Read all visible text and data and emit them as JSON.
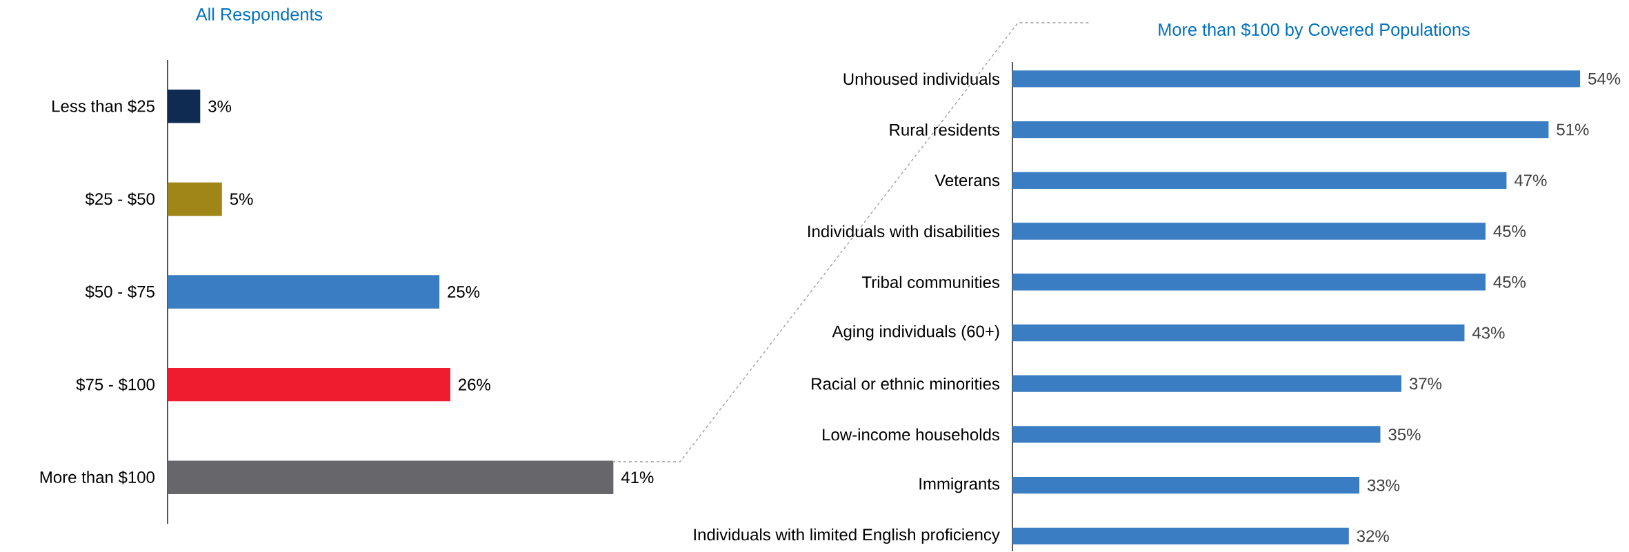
{
  "chart_data": [
    {
      "type": "bar",
      "orientation": "horizontal",
      "title": "All Respondents",
      "categories": [
        "Less than $25",
        "$25 - $50",
        "$50 - $75",
        "$75 - $100",
        "More than $100"
      ],
      "values": [
        3,
        5,
        25,
        26,
        41
      ],
      "colors": [
        "#0f2b52",
        "#a08518",
        "#3a7dc2",
        "#ee1c2e",
        "#67666b"
      ],
      "value_labels": [
        "3%",
        "5%",
        "25%",
        "26%",
        "41%"
      ],
      "tick_labels": "y"
    },
    {
      "type": "bar",
      "orientation": "horizontal",
      "title": "More than $100 by Covered Populations",
      "categories": [
        "Unhoused individuals",
        "Rural residents",
        "Veterans",
        "Individuals with disabilities",
        "Tribal communities",
        "Aging individuals (60+)",
        "Racial or ethnic minorities",
        "Low-income households",
        "Immigrants",
        "Individuals with limited English proficiency"
      ],
      "values": [
        54,
        51,
        47,
        45,
        45,
        43,
        37,
        35,
        33,
        32
      ],
      "color": "#3a7dc2",
      "value_labels": [
        "54%",
        "51%",
        "47%",
        "45%",
        "45%",
        "43%",
        "37%",
        "35%",
        "33%",
        "32%"
      ],
      "tick_labels": "y"
    }
  ]
}
